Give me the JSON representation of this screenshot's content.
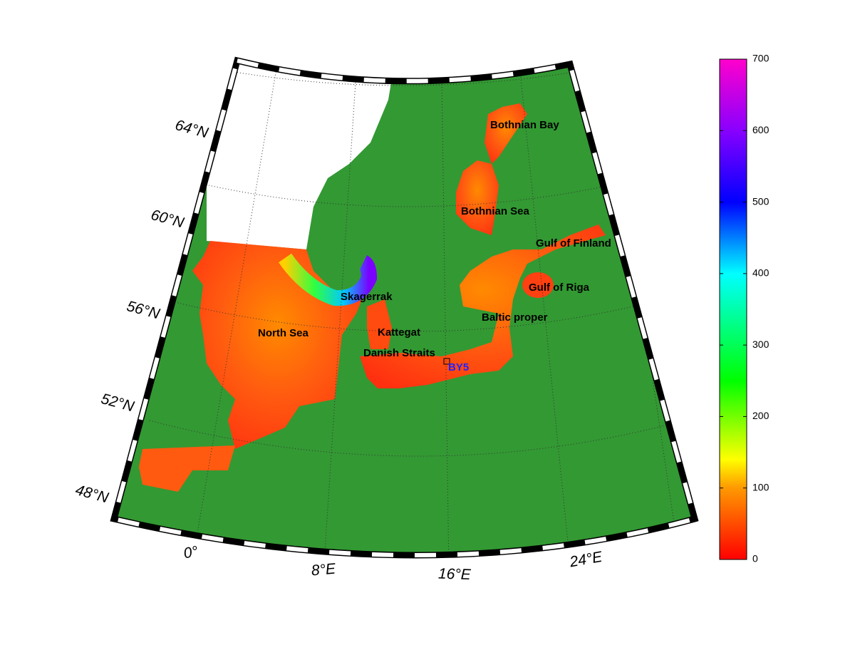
{
  "map": {
    "latitude_labels": [
      "64°N",
      "60°N",
      "56°N",
      "52°N",
      "48°N"
    ],
    "longitude_labels": [
      "0°",
      "8°E",
      "16°E",
      "24°E"
    ],
    "regions": [
      "Bothnian Bay",
      "Bothnian Sea",
      "Gulf of Finland",
      "Gulf of Riga",
      "Skagerrak",
      "Baltic proper",
      "North Sea",
      "Kattegat",
      "Danish Straits"
    ],
    "station": "BY5",
    "colorbar": {
      "lim": [
        0,
        700
      ],
      "ticks": [
        0,
        100,
        200,
        300,
        400,
        500,
        600,
        700
      ]
    }
  }
}
